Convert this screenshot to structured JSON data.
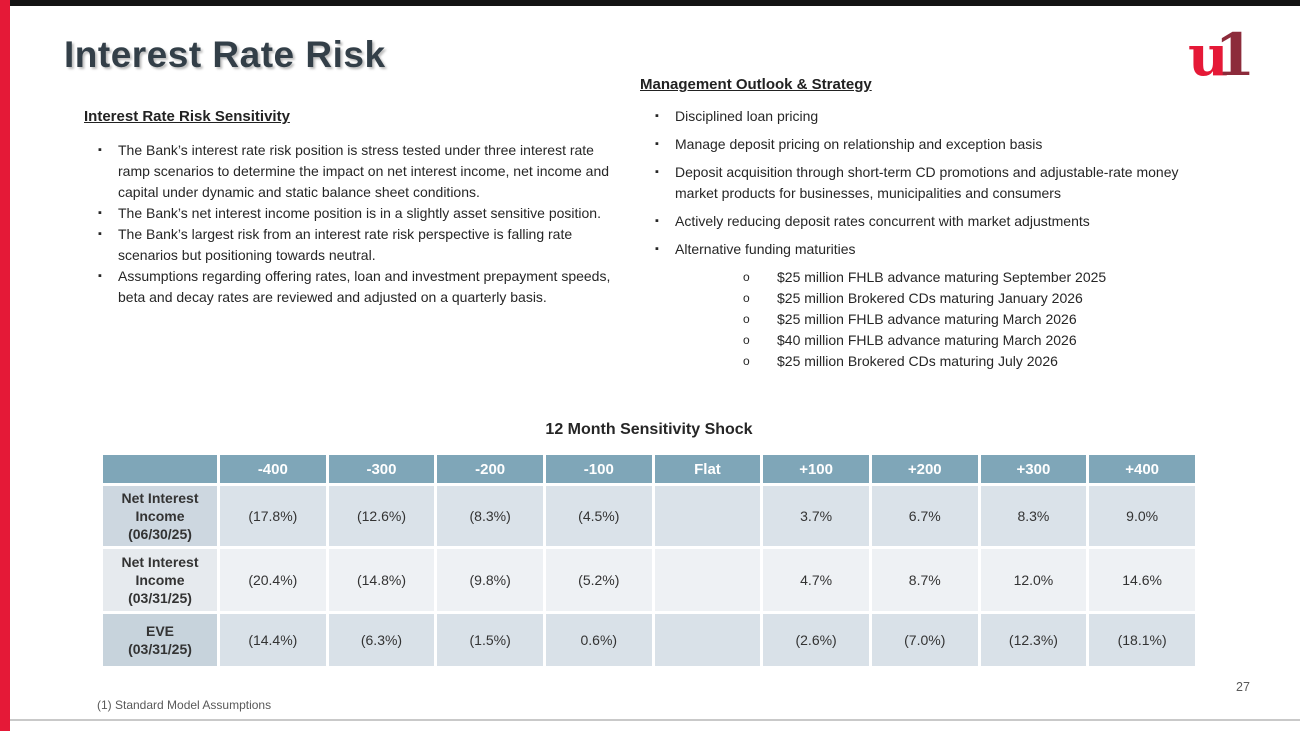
{
  "title": "Interest Rate Risk",
  "logo": {
    "u": "u",
    "one": "1"
  },
  "icons": {
    "square_bullet": "▪",
    "circle_bullet": "o"
  },
  "left_section": {
    "heading": "Interest Rate Risk Sensitivity",
    "bullets": [
      "The Bank’s interest rate risk position is stress tested under three interest rate ramp scenarios to determine the impact on net interest income, net income and capital under dynamic and static balance sheet conditions.",
      "The Bank’s net interest income position is in a slightly asset sensitive position.",
      "The Bank’s largest risk from an interest rate risk perspective is falling rate scenarios but positioning towards neutral.",
      "Assumptions regarding offering rates, loan and investment prepayment speeds, beta and decay rates are reviewed and adjusted on a quarterly basis."
    ]
  },
  "right_section": {
    "heading": "Management Outlook & Strategy",
    "bullets": [
      "Disciplined loan pricing",
      "Manage deposit pricing on relationship and exception basis",
      "Deposit acquisition through short-term CD promotions and adjustable-rate money market products for businesses, municipalities and consumers",
      "Actively reducing deposit rates concurrent with market adjustments",
      "Alternative funding maturities"
    ],
    "sub_bullets": [
      "$25 million FHLB advance maturing September 2025",
      "$25 million Brokered CDs maturing January 2026",
      "$25 million FHLB advance maturing March 2026",
      "$40 million FHLB advance maturing March 2026",
      "$25 million Brokered CDs maturing July 2026"
    ]
  },
  "table": {
    "title": "12 Month Sensitivity Shock",
    "columns": [
      "-400",
      "-300",
      "-200",
      "-100",
      "Flat",
      "+100",
      "+200",
      "+300",
      "+400"
    ],
    "rows": [
      {
        "label": "Net Interest Income",
        "date": "(06/30/25)",
        "values": [
          "(17.8%)",
          "(12.6%)",
          "(8.3%)",
          "(4.5%)",
          "",
          "3.7%",
          "6.7%",
          "8.3%",
          "9.0%"
        ]
      },
      {
        "label": "Net Interest Income",
        "date": "(03/31/25)",
        "values": [
          "(20.4%)",
          "(14.8%)",
          "(9.8%)",
          "(5.2%)",
          "",
          "4.7%",
          "8.7%",
          "12.0%",
          "14.6%"
        ]
      },
      {
        "label": "EVE",
        "date": "(03/31/25)",
        "values": [
          "(14.4%)",
          "(6.3%)",
          "(1.5%)",
          "0.6%)",
          "",
          "(2.6%)",
          "(7.0%)",
          "(12.3%)",
          "(18.1%)"
        ]
      }
    ]
  },
  "footer": {
    "footnote": "(1) Standard Model Assumptions",
    "page_number": "27"
  },
  "colors": {
    "accent_red": "#E51937",
    "logo_maroon": "#8C2B3B",
    "title_text": "#333F48",
    "table_header_bg": "#7FA6B8",
    "row_light_bg": "#DAE2E9",
    "row_lighter_bg": "#EEF1F4"
  }
}
